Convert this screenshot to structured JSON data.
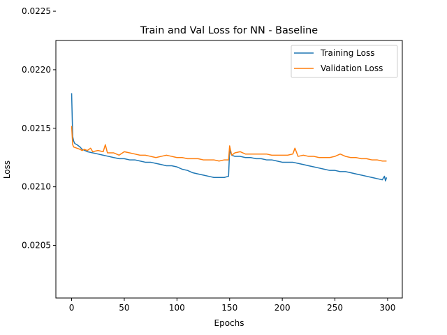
{
  "chart_data": {
    "type": "line",
    "title": "Train and Val Loss for NN - Baseline",
    "xlabel": "Epochs",
    "ylabel": "Loss",
    "xlim": [
      -14.95,
      313.95
    ],
    "ylim": [
      0.02005,
      0.02225
    ],
    "x_ticks": [
      0,
      50,
      100,
      150,
      200,
      250,
      300
    ],
    "y_ticks": [
      0.0205,
      0.021,
      0.0215,
      0.022,
      0.0225
    ],
    "y_tick_labels": [
      "0.0205",
      "0.0210",
      "0.0215",
      "0.0220",
      "0.0225"
    ],
    "x_tick_labels": [
      "0",
      "50",
      "100",
      "150",
      "200",
      "250",
      "300"
    ],
    "grid": false,
    "legend_position": "top-right",
    "series": [
      {
        "name": "Training Loss",
        "color": "#1f77b4",
        "points": [
          [
            0,
            0.0218
          ],
          [
            1,
            0.02143
          ],
          [
            2,
            0.02139
          ],
          [
            3,
            0.02137
          ],
          [
            5,
            0.02136
          ],
          [
            8,
            0.02134
          ],
          [
            10,
            0.02132
          ],
          [
            15,
            0.0213
          ],
          [
            20,
            0.02129
          ],
          [
            25,
            0.02128
          ],
          [
            30,
            0.02127
          ],
          [
            35,
            0.02126
          ],
          [
            40,
            0.02125
          ],
          [
            45,
            0.02124
          ],
          [
            50,
            0.02124
          ],
          [
            55,
            0.02123
          ],
          [
            60,
            0.02123
          ],
          [
            65,
            0.02122
          ],
          [
            70,
            0.02121
          ],
          [
            75,
            0.02121
          ],
          [
            80,
            0.0212
          ],
          [
            85,
            0.02119
          ],
          [
            90,
            0.02118
          ],
          [
            95,
            0.02118
          ],
          [
            100,
            0.02117
          ],
          [
            105,
            0.02115
          ],
          [
            110,
            0.02114
          ],
          [
            115,
            0.02112
          ],
          [
            120,
            0.02111
          ],
          [
            125,
            0.0211
          ],
          [
            130,
            0.02109
          ],
          [
            135,
            0.02108
          ],
          [
            140,
            0.02108
          ],
          [
            145,
            0.02108
          ],
          [
            149,
            0.02109
          ],
          [
            150,
            0.02131
          ],
          [
            152,
            0.02127
          ],
          [
            155,
            0.02126
          ],
          [
            160,
            0.02126
          ],
          [
            165,
            0.02125
          ],
          [
            170,
            0.02125
          ],
          [
            175,
            0.02124
          ],
          [
            180,
            0.02124
          ],
          [
            185,
            0.02123
          ],
          [
            190,
            0.02123
          ],
          [
            195,
            0.02122
          ],
          [
            200,
            0.02121
          ],
          [
            205,
            0.02121
          ],
          [
            210,
            0.02121
          ],
          [
            215,
            0.0212
          ],
          [
            220,
            0.02119
          ],
          [
            225,
            0.02118
          ],
          [
            230,
            0.02117
          ],
          [
            235,
            0.02116
          ],
          [
            240,
            0.02115
          ],
          [
            245,
            0.02114
          ],
          [
            250,
            0.02114
          ],
          [
            255,
            0.02113
          ],
          [
            260,
            0.02113
          ],
          [
            265,
            0.02112
          ],
          [
            270,
            0.02111
          ],
          [
            275,
            0.0211
          ],
          [
            280,
            0.02109
          ],
          [
            285,
            0.02108
          ],
          [
            290,
            0.02107
          ],
          [
            295,
            0.02106
          ],
          [
            297,
            0.02109
          ],
          [
            298,
            0.02105
          ],
          [
            299,
            0.02108
          ]
        ]
      },
      {
        "name": "Validation Loss",
        "color": "#ff7f0e",
        "points": [
          [
            0,
            0.02152
          ],
          [
            1,
            0.02136
          ],
          [
            2,
            0.02134
          ],
          [
            5,
            0.02133
          ],
          [
            8,
            0.02132
          ],
          [
            10,
            0.02131
          ],
          [
            12,
            0.02132
          ],
          [
            15,
            0.02131
          ],
          [
            18,
            0.02133
          ],
          [
            20,
            0.0213
          ],
          [
            25,
            0.02131
          ],
          [
            30,
            0.0213
          ],
          [
            32,
            0.02136
          ],
          [
            34,
            0.02129
          ],
          [
            40,
            0.02129
          ],
          [
            45,
            0.02127
          ],
          [
            50,
            0.0213
          ],
          [
            55,
            0.02129
          ],
          [
            60,
            0.02128
          ],
          [
            65,
            0.02127
          ],
          [
            70,
            0.02127
          ],
          [
            75,
            0.02126
          ],
          [
            80,
            0.02125
          ],
          [
            85,
            0.02126
          ],
          [
            90,
            0.02127
          ],
          [
            95,
            0.02126
          ],
          [
            100,
            0.02125
          ],
          [
            105,
            0.02125
          ],
          [
            110,
            0.02124
          ],
          [
            115,
            0.02124
          ],
          [
            120,
            0.02124
          ],
          [
            125,
            0.02123
          ],
          [
            130,
            0.02123
          ],
          [
            135,
            0.02123
          ],
          [
            140,
            0.02122
          ],
          [
            145,
            0.02123
          ],
          [
            149,
            0.02123
          ],
          [
            150,
            0.02135
          ],
          [
            152,
            0.02127
          ],
          [
            155,
            0.02129
          ],
          [
            160,
            0.0213
          ],
          [
            165,
            0.02128
          ],
          [
            170,
            0.02128
          ],
          [
            175,
            0.02128
          ],
          [
            180,
            0.02128
          ],
          [
            185,
            0.02128
          ],
          [
            190,
            0.02127
          ],
          [
            195,
            0.02127
          ],
          [
            200,
            0.02127
          ],
          [
            205,
            0.02127
          ],
          [
            210,
            0.02128
          ],
          [
            212,
            0.02133
          ],
          [
            215,
            0.02126
          ],
          [
            220,
            0.02127
          ],
          [
            225,
            0.02126
          ],
          [
            230,
            0.02126
          ],
          [
            235,
            0.02125
          ],
          [
            240,
            0.02125
          ],
          [
            245,
            0.02125
          ],
          [
            250,
            0.02126
          ],
          [
            255,
            0.02128
          ],
          [
            260,
            0.02126
          ],
          [
            265,
            0.02125
          ],
          [
            270,
            0.02125
          ],
          [
            275,
            0.02124
          ],
          [
            280,
            0.02124
          ],
          [
            285,
            0.02123
          ],
          [
            290,
            0.02123
          ],
          [
            295,
            0.02122
          ],
          [
            299,
            0.02122
          ]
        ]
      }
    ]
  }
}
